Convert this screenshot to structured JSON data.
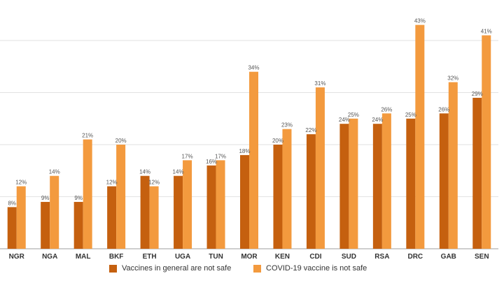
{
  "chart_data": {
    "type": "bar",
    "categories": [
      "NGR",
      "NGA",
      "MAL",
      "BKF",
      "ETH",
      "UGA",
      "TUN",
      "MOR",
      "KEN",
      "CDI",
      "SUD",
      "RSA",
      "DRC",
      "GAB",
      "SEN"
    ],
    "series": [
      {
        "name": "Vaccines in general are not safe",
        "color": "#c5600f",
        "values": [
          8,
          9,
          9,
          12,
          14,
          14,
          16,
          18,
          20,
          22,
          24,
          24,
          25,
          26,
          29
        ],
        "labels": [
          "8%",
          "9%",
          "9%",
          "12%",
          "14%",
          "14%",
          "16%",
          "18%",
          "20%",
          "22%",
          "24%",
          "24%",
          "25%",
          "26%",
          "29%"
        ]
      },
      {
        "name": "COVID-19 vaccine is not safe",
        "color": "#f39a3e",
        "values": [
          12,
          14,
          21,
          20,
          12,
          17,
          17,
          34,
          23,
          31,
          25,
          26,
          43,
          32,
          41
        ],
        "labels": [
          "12%",
          "14%",
          "21%",
          "20%",
          "12%",
          "17%",
          "17%",
          "34%",
          "23%",
          "31%",
          "25%",
          "26%",
          "43%",
          "32%",
          "41%"
        ]
      }
    ],
    "ylim": [
      0,
      45
    ],
    "yticks": [
      0,
      10,
      20,
      30,
      40
    ],
    "grid": true,
    "legend": "bottom"
  }
}
